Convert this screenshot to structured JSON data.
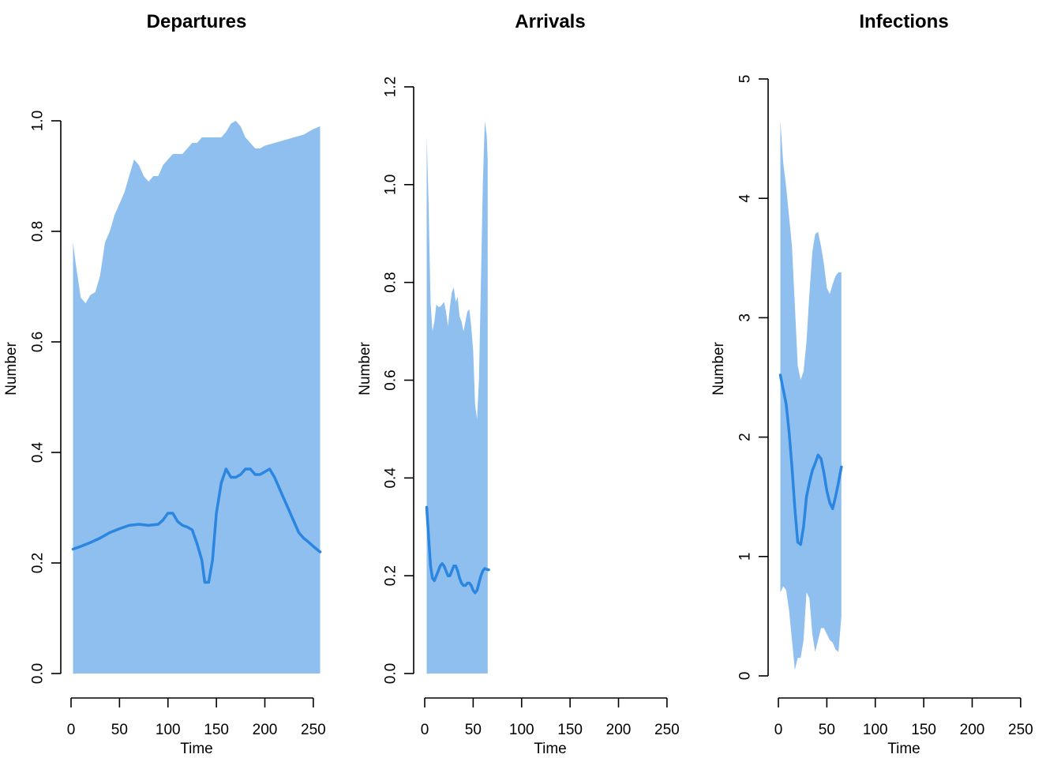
{
  "colors": {
    "band": "#8fbfee",
    "line": "#2a86e0",
    "axis": "#000000"
  },
  "chart_data": [
    {
      "type": "area",
      "title": "Departures",
      "xlabel": "Time",
      "ylabel": "Number",
      "xlim": [
        0,
        255
      ],
      "ylim": [
        0,
        1.0
      ],
      "xticks": [
        0,
        50,
        100,
        150,
        200,
        250
      ],
      "yticks": [
        0.0,
        0.2,
        0.4,
        0.6,
        0.8,
        1.0
      ],
      "xtick_labels": [
        "0",
        "50",
        "100",
        "150",
        "200",
        "250"
      ],
      "ytick_labels": [
        "0.0",
        "0.2",
        "0.4",
        "0.6",
        "0.8",
        "1.0"
      ],
      "band_x": [
        2,
        5,
        10,
        15,
        20,
        25,
        30,
        35,
        40,
        45,
        50,
        55,
        60,
        65,
        70,
        75,
        80,
        85,
        90,
        95,
        100,
        105,
        110,
        115,
        120,
        125,
        130,
        135,
        140,
        145,
        150,
        155,
        160,
        165,
        170,
        175,
        180,
        185,
        190,
        195,
        200,
        210,
        220,
        230,
        240,
        250,
        257
      ],
      "band_upper": [
        0.78,
        0.74,
        0.68,
        0.67,
        0.685,
        0.69,
        0.72,
        0.78,
        0.8,
        0.83,
        0.85,
        0.87,
        0.9,
        0.93,
        0.92,
        0.9,
        0.89,
        0.9,
        0.9,
        0.92,
        0.93,
        0.94,
        0.94,
        0.94,
        0.95,
        0.96,
        0.96,
        0.97,
        0.97,
        0.97,
        0.97,
        0.97,
        0.98,
        0.995,
        1.0,
        0.99,
        0.97,
        0.96,
        0.95,
        0.95,
        0.955,
        0.96,
        0.965,
        0.97,
        0.975,
        0.985,
        0.99
      ],
      "band_lower": [
        0,
        0,
        0,
        0,
        0,
        0,
        0,
        0,
        0,
        0,
        0,
        0,
        0,
        0,
        0,
        0,
        0,
        0,
        0,
        0,
        0,
        0,
        0,
        0,
        0,
        0,
        0,
        0,
        0,
        0,
        0,
        0,
        0,
        0,
        0,
        0,
        0,
        0,
        0,
        0,
        0,
        0,
        0,
        0,
        0,
        0,
        0
      ],
      "mean_x": [
        2,
        10,
        20,
        30,
        40,
        50,
        60,
        70,
        80,
        90,
        95,
        100,
        105,
        110,
        115,
        120,
        125,
        130,
        135,
        138,
        142,
        146,
        150,
        155,
        160,
        165,
        170,
        175,
        180,
        185,
        190,
        195,
        200,
        205,
        210,
        215,
        220,
        225,
        230,
        235,
        240,
        245,
        250,
        257
      ],
      "mean_y": [
        0.225,
        0.23,
        0.237,
        0.245,
        0.255,
        0.262,
        0.268,
        0.27,
        0.268,
        0.27,
        0.278,
        0.29,
        0.29,
        0.275,
        0.268,
        0.265,
        0.26,
        0.235,
        0.205,
        0.165,
        0.165,
        0.205,
        0.29,
        0.345,
        0.37,
        0.355,
        0.355,
        0.36,
        0.37,
        0.37,
        0.36,
        0.36,
        0.365,
        0.37,
        0.355,
        0.335,
        0.315,
        0.295,
        0.275,
        0.255,
        0.245,
        0.238,
        0.23,
        0.22
      ]
    },
    {
      "type": "area",
      "title": "Arrivals",
      "xlabel": "Time",
      "ylabel": "Number",
      "xlim": [
        0,
        255
      ],
      "ylim": [
        0,
        1.2
      ],
      "xticks": [
        0,
        50,
        100,
        150,
        200,
        250
      ],
      "yticks": [
        0.0,
        0.2,
        0.4,
        0.6,
        0.8,
        1.0,
        1.2
      ],
      "xtick_labels": [
        "0",
        "50",
        "100",
        "150",
        "200",
        "250"
      ],
      "ytick_labels": [
        "0.0",
        "0.2",
        "0.4",
        "0.6",
        "0.8",
        "1.0",
        "1.2"
      ],
      "band_x": [
        2,
        4,
        6,
        8,
        10,
        12,
        14,
        16,
        18,
        20,
        22,
        24,
        26,
        28,
        30,
        32,
        34,
        36,
        38,
        40,
        42,
        44,
        46,
        48,
        50,
        52,
        54,
        56,
        58,
        60,
        62,
        64,
        65
      ],
      "band_upper": [
        1.1,
        0.96,
        0.76,
        0.7,
        0.72,
        0.755,
        0.75,
        0.75,
        0.755,
        0.76,
        0.74,
        0.71,
        0.75,
        0.78,
        0.79,
        0.76,
        0.77,
        0.73,
        0.72,
        0.7,
        0.72,
        0.74,
        0.745,
        0.71,
        0.66,
        0.55,
        0.52,
        0.6,
        0.8,
        1.0,
        1.13,
        1.1,
        1.05
      ],
      "band_lower": [
        0,
        0,
        0,
        0,
        0,
        0,
        0,
        0,
        0,
        0,
        0,
        0,
        0,
        0,
        0,
        0,
        0,
        0,
        0,
        0,
        0,
        0,
        0,
        0,
        0,
        0,
        0,
        0,
        0,
        0,
        0,
        0,
        0
      ],
      "mean_x": [
        2,
        4,
        6,
        8,
        10,
        12,
        14,
        16,
        18,
        20,
        22,
        24,
        26,
        28,
        30,
        32,
        34,
        36,
        38,
        40,
        42,
        44,
        46,
        48,
        50,
        52,
        54,
        56,
        58,
        60,
        62,
        64,
        66
      ],
      "mean_y": [
        0.34,
        0.28,
        0.22,
        0.195,
        0.19,
        0.2,
        0.21,
        0.22,
        0.225,
        0.22,
        0.21,
        0.2,
        0.2,
        0.21,
        0.22,
        0.22,
        0.21,
        0.195,
        0.185,
        0.18,
        0.18,
        0.185,
        0.185,
        0.18,
        0.17,
        0.165,
        0.17,
        0.185,
        0.2,
        0.21,
        0.215,
        0.213,
        0.212
      ]
    },
    {
      "type": "area",
      "title": "Infections",
      "xlabel": "Time",
      "ylabel": "Number",
      "xlim": [
        0,
        255
      ],
      "ylim": [
        0,
        5
      ],
      "xticks": [
        0,
        50,
        100,
        150,
        200,
        250
      ],
      "yticks": [
        0,
        1,
        2,
        3,
        4,
        5
      ],
      "xtick_labels": [
        "0",
        "50",
        "100",
        "150",
        "200",
        "250"
      ],
      "ytick_labels": [
        "0",
        "1",
        "2",
        "3",
        "4",
        "5"
      ],
      "band_x": [
        2,
        5,
        8,
        11,
        14,
        17,
        20,
        23,
        26,
        29,
        32,
        35,
        38,
        41,
        44,
        47,
        50,
        53,
        56,
        59,
        62,
        65
      ],
      "band_upper": [
        4.65,
        4.3,
        4.1,
        3.85,
        3.6,
        3.1,
        2.6,
        2.48,
        2.55,
        2.8,
        3.2,
        3.55,
        3.7,
        3.72,
        3.6,
        3.45,
        3.25,
        3.2,
        3.28,
        3.35,
        3.38,
        3.38
      ],
      "band_lower": [
        0.7,
        0.75,
        0.72,
        0.55,
        0.3,
        0.05,
        0.15,
        0.15,
        0.3,
        0.7,
        0.65,
        0.35,
        0.2,
        0.3,
        0.4,
        0.4,
        0.35,
        0.3,
        0.28,
        0.22,
        0.2,
        0.5
      ],
      "mean_x": [
        2,
        5,
        8,
        11,
        14,
        17,
        20,
        23,
        26,
        29,
        32,
        35,
        38,
        41,
        44,
        47,
        50,
        53,
        56,
        59,
        62,
        65
      ],
      "mean_y": [
        2.52,
        2.4,
        2.28,
        2.05,
        1.75,
        1.4,
        1.12,
        1.1,
        1.25,
        1.5,
        1.62,
        1.72,
        1.78,
        1.85,
        1.82,
        1.7,
        1.55,
        1.45,
        1.4,
        1.5,
        1.62,
        1.75
      ]
    }
  ]
}
